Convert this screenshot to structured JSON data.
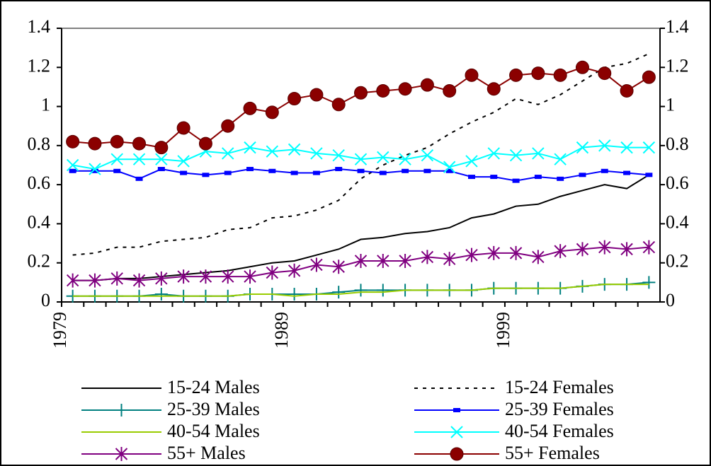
{
  "chart_data": {
    "type": "line",
    "categories": [
      "1979",
      null,
      null,
      null,
      null,
      null,
      null,
      null,
      null,
      null,
      "1989",
      null,
      null,
      null,
      null,
      null,
      null,
      null,
      null,
      null,
      "1999",
      null,
      null,
      null,
      null,
      null,
      null
    ],
    "ylim": [
      0,
      1.4
    ],
    "yticks": [
      0,
      0.2,
      0.4,
      0.6,
      0.8,
      1,
      1.2,
      1.4
    ],
    "y2lim": [
      0,
      1.4
    ],
    "y2ticks": [
      0,
      0.2,
      0.4,
      0.6,
      0.8,
      1,
      1.2,
      1.4
    ],
    "series": [
      {
        "name": "15-24 Males",
        "color": "#000000",
        "dash": "solid",
        "marker": "none",
        "values": [
          0.11,
          0.11,
          0.12,
          0.12,
          0.13,
          0.14,
          0.15,
          0.16,
          0.18,
          0.2,
          0.21,
          0.24,
          0.27,
          0.32,
          0.33,
          0.35,
          0.36,
          0.38,
          0.43,
          0.45,
          0.49,
          0.5,
          0.54,
          0.57,
          0.6,
          0.58,
          0.65
        ]
      },
      {
        "name": "15-24 Females",
        "color": "#000000",
        "dash": "dotted",
        "marker": "none",
        "values": [
          0.24,
          0.25,
          0.28,
          0.28,
          0.31,
          0.32,
          0.33,
          0.37,
          0.38,
          0.43,
          0.44,
          0.47,
          0.52,
          0.63,
          0.7,
          0.75,
          0.79,
          0.86,
          0.92,
          0.97,
          1.04,
          1.01,
          1.06,
          1.13,
          1.2,
          1.22,
          1.27
        ]
      },
      {
        "name": "25-39 Males",
        "color": "#008080",
        "dash": "solid",
        "marker": "plus",
        "values": [
          0.03,
          0.03,
          0.03,
          0.03,
          0.04,
          0.03,
          0.03,
          0.03,
          0.04,
          0.04,
          0.04,
          0.04,
          0.05,
          0.06,
          0.06,
          0.06,
          0.06,
          0.06,
          0.06,
          0.07,
          0.07,
          0.07,
          0.07,
          0.08,
          0.09,
          0.09,
          0.1
        ]
      },
      {
        "name": "25-39 Females",
        "color": "#0000ff",
        "dash": "solid",
        "marker": "square",
        "values": [
          0.67,
          0.67,
          0.67,
          0.63,
          0.68,
          0.66,
          0.65,
          0.66,
          0.68,
          0.67,
          0.66,
          0.66,
          0.68,
          0.67,
          0.66,
          0.67,
          0.67,
          0.67,
          0.64,
          0.64,
          0.62,
          0.64,
          0.63,
          0.65,
          0.67,
          0.66,
          0.65
        ]
      },
      {
        "name": "40-54 Males",
        "color": "#99cc00",
        "dash": "solid",
        "marker": "none",
        "values": [
          0.03,
          0.03,
          0.03,
          0.03,
          0.03,
          0.03,
          0.03,
          0.03,
          0.04,
          0.04,
          0.03,
          0.04,
          0.04,
          0.05,
          0.05,
          0.06,
          0.06,
          0.06,
          0.06,
          0.07,
          0.07,
          0.07,
          0.07,
          0.08,
          0.09,
          0.09,
          0.09
        ]
      },
      {
        "name": "40-54 Females",
        "color": "#00ffff",
        "dash": "solid",
        "marker": "cross",
        "values": [
          0.7,
          0.68,
          0.73,
          0.73,
          0.73,
          0.72,
          0.77,
          0.76,
          0.79,
          0.77,
          0.78,
          0.76,
          0.75,
          0.73,
          0.74,
          0.73,
          0.75,
          0.69,
          0.72,
          0.76,
          0.75,
          0.76,
          0.73,
          0.79,
          0.8,
          0.79,
          0.79
        ]
      },
      {
        "name": "55+ Males",
        "color": "#800080",
        "dash": "solid",
        "marker": "star",
        "values": [
          0.11,
          0.11,
          0.12,
          0.11,
          0.12,
          0.13,
          0.13,
          0.13,
          0.13,
          0.15,
          0.16,
          0.19,
          0.18,
          0.21,
          0.21,
          0.21,
          0.23,
          0.22,
          0.24,
          0.25,
          0.25,
          0.23,
          0.26,
          0.27,
          0.28,
          0.27,
          0.28
        ]
      },
      {
        "name": "55+ Females",
        "color": "#8b0000",
        "dash": "solid",
        "marker": "circle",
        "values": [
          0.82,
          0.81,
          0.82,
          0.81,
          0.79,
          0.89,
          0.81,
          0.9,
          0.99,
          0.97,
          1.04,
          1.06,
          1.01,
          1.07,
          1.08,
          1.09,
          1.11,
          1.08,
          1.16,
          1.09,
          1.16,
          1.17,
          1.16,
          1.2,
          1.17,
          1.08,
          1.15
        ]
      }
    ]
  }
}
